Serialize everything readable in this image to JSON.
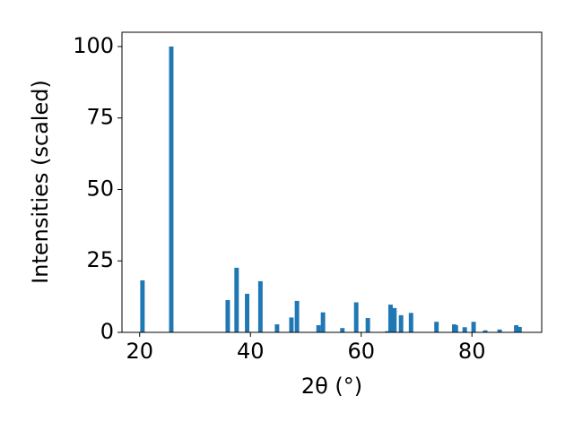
{
  "chart_data": {
    "type": "bar",
    "xlabel": "2θ (°)",
    "ylabel": "Intensities (scaled)",
    "x": [
      20.5,
      25.7,
      35.9,
      37.5,
      39.4,
      41.8,
      44.8,
      47.4,
      48.4,
      52.3,
      53.1,
      56.6,
      59.1,
      61.2,
      64.7,
      65.3,
      66.0,
      67.2,
      69.0,
      73.6,
      76.8,
      77.1,
      78.7,
      80.3,
      82.4,
      85.0,
      88.0,
      88.6
    ],
    "values": [
      18.2,
      100,
      11.3,
      22.6,
      13.5,
      17.9,
      2.8,
      5.2,
      11,
      2.5,
      7,
      1.5,
      10.5,
      5,
      0.4,
      9.7,
      8.5,
      6,
      6.8,
      3.7,
      2.8,
      2.5,
      1.8,
      3.7,
      0.7,
      1,
      2.5,
      1.9
    ],
    "color": "#1f77b4",
    "xlim": [
      16.8,
      92.6
    ],
    "xticks": [
      20,
      40,
      60,
      80
    ],
    "ylim": [
      0,
      105
    ],
    "yticks": [
      0,
      25,
      50,
      75,
      100
    ],
    "grid": false
  }
}
